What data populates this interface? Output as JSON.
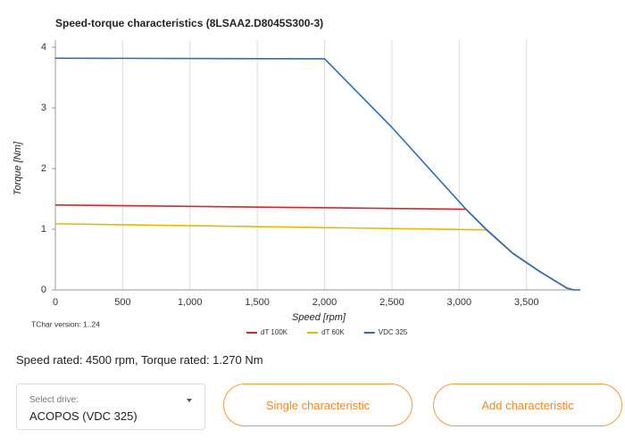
{
  "chart_data": {
    "type": "line",
    "title": "Speed-torque characteristics (8LSAA2.D8045S300-3)",
    "x_label": "Speed [rpm]",
    "y_label": "Torque [Nm]",
    "annotation": "TChar version: 1..24",
    "xlim": [
      0,
      3900
    ],
    "ylim": [
      0,
      4
    ],
    "xticks": [
      0,
      500,
      {
        "value": 1000,
        "label": "1,000"
      },
      {
        "value": 1500,
        "label": "1,500"
      },
      {
        "value": 2000,
        "label": "2,000"
      },
      {
        "value": 2500,
        "label": "2,500"
      },
      {
        "value": 3000,
        "label": "3,000"
      },
      {
        "value": 3500,
        "label": "3,500"
      }
    ],
    "yticks": [
      0,
      1,
      2,
      3,
      4
    ],
    "grid": "x",
    "series": [
      {
        "name": "dT 100K",
        "color": "#d62728",
        "x": [
          0,
          3050,
          3200,
          3400,
          3600,
          3800,
          3850
        ],
        "values": [
          1.4,
          1.33,
          1.0,
          0.6,
          0.3,
          0.03,
          0
        ]
      },
      {
        "name": "dT 60K",
        "color": "#e6b800",
        "x": [
          0,
          3200,
          3400,
          3600,
          3800,
          3850
        ],
        "values": [
          1.09,
          0.99,
          0.6,
          0.3,
          0.03,
          0
        ]
      },
      {
        "name": "VDC 325",
        "color": "#2a6db5",
        "x": [
          0,
          2000,
          2500,
          3050,
          3200,
          3400,
          3600,
          3800,
          3850,
          3900
        ],
        "values": [
          3.82,
          3.81,
          2.68,
          1.33,
          1.0,
          0.6,
          0.3,
          0.03,
          0,
          0
        ]
      }
    ]
  },
  "info": "Speed rated: 4500 rpm, Torque rated: 1.270 Nm",
  "drive_select": {
    "label": "Select drive:",
    "value": "ACOPOS (VDC 325)"
  },
  "buttons": [
    "Single characteristic",
    "Add characteristic"
  ]
}
